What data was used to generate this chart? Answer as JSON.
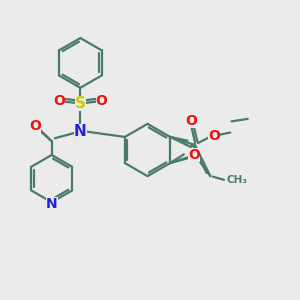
{
  "bg_color": "#ebebeb",
  "bond_color": "#4a7a6a",
  "bond_width": 1.6,
  "n_color": "#2222dd",
  "o_color": "#ee1111",
  "s_color": "#cccc00",
  "fig_width": 3.0,
  "fig_height": 3.0,
  "dpi": 100,
  "xlim": [
    0,
    12
  ],
  "ylim": [
    0,
    12
  ]
}
